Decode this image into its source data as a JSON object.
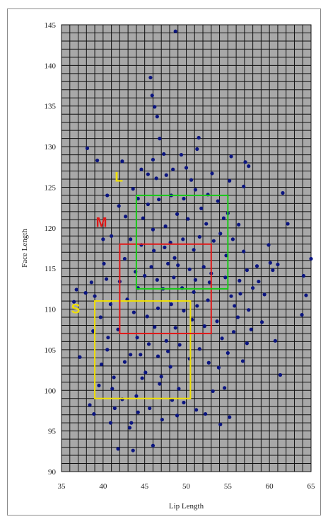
{
  "chart_data": {
    "type": "scatter",
    "title": "",
    "xlabel": "Lip Length",
    "ylabel": "Face Length",
    "xlim": [
      35,
      65
    ],
    "ylim": [
      90,
      145
    ],
    "x_ticks": [
      35,
      40,
      45,
      50,
      55,
      60,
      65
    ],
    "y_ticks": [
      90,
      95,
      100,
      105,
      110,
      115,
      120,
      125,
      130,
      135,
      140,
      145
    ],
    "grid": true,
    "colors": {
      "points": "#0b1580",
      "plot_background": "#a8a8a8",
      "grid_lines": "#111111",
      "box_s": "#f0e000",
      "box_m": "#e01818",
      "box_l": "#18c818"
    },
    "boxes": [
      {
        "label": "S",
        "x": [
          39,
          50.5
        ],
        "y": [
          99,
          111
        ],
        "color": "#f0e000",
        "label_at": [
          36.7,
          109.5
        ],
        "label_color": "#f0e000"
      },
      {
        "label": "M",
        "x": [
          42,
          53
        ],
        "y": [
          107,
          118
        ],
        "color": "#e01818",
        "label_at": [
          39.8,
          120.1
        ],
        "label_color": "#e01818"
      },
      {
        "label": "L",
        "x": [
          44,
          55
        ],
        "y": [
          112.5,
          124
        ],
        "color": "#18c818",
        "label_at": [
          41.9,
          125.7
        ],
        "label_color": "#f0e000"
      }
    ],
    "points": [
      [
        38.1,
        129.8
      ],
      [
        39.3,
        128.3
      ],
      [
        36.8,
        112.4
      ],
      [
        37.2,
        104.1
      ],
      [
        36.5,
        110.9
      ],
      [
        37.9,
        112.0
      ],
      [
        38.6,
        113.3
      ],
      [
        39.0,
        111.6
      ],
      [
        38.4,
        98.2
      ],
      [
        38.9,
        97.1
      ],
      [
        40.9,
        96.0
      ],
      [
        41.8,
        92.8
      ],
      [
        43.6,
        92.6
      ],
      [
        46.0,
        93.2
      ],
      [
        43.4,
        96.0
      ],
      [
        44.2,
        97.3
      ],
      [
        45.6,
        97.8
      ],
      [
        47.1,
        96.4
      ],
      [
        48.9,
        96.9
      ],
      [
        49.7,
        98.5
      ],
      [
        51.2,
        97.6
      ],
      [
        52.3,
        97.1
      ],
      [
        54.1,
        95.8
      ],
      [
        55.2,
        96.7
      ],
      [
        54.6,
        100.3
      ],
      [
        56.8,
        103.6
      ],
      [
        57.3,
        105.8
      ],
      [
        57.8,
        107.5
      ],
      [
        59.1,
        108.4
      ],
      [
        60.7,
        106.1
      ],
      [
        61.3,
        101.9
      ],
      [
        63.9,
        109.3
      ],
      [
        64.4,
        111.7
      ],
      [
        64.1,
        114.1
      ],
      [
        65.0,
        116.2
      ],
      [
        61.0,
        115.5
      ],
      [
        60.1,
        115.7
      ],
      [
        60.4,
        114.8
      ],
      [
        58.5,
        115.3
      ],
      [
        59.4,
        111.8
      ],
      [
        62.2,
        120.5
      ],
      [
        61.6,
        124.3
      ],
      [
        57.5,
        127.6
      ],
      [
        57.1,
        128.1
      ],
      [
        55.4,
        128.8
      ],
      [
        56.9,
        125.1
      ],
      [
        51.5,
        131.1
      ],
      [
        51.3,
        129.7
      ],
      [
        49.4,
        129.0
      ],
      [
        48.4,
        127.2
      ],
      [
        48.7,
        144.2
      ],
      [
        45.7,
        138.5
      ],
      [
        45.9,
        136.3
      ],
      [
        46.2,
        134.9
      ],
      [
        46.5,
        133.7
      ],
      [
        46.8,
        131.0
      ],
      [
        44.6,
        127.2
      ],
      [
        42.3,
        128.2
      ],
      [
        40.5,
        124.0
      ],
      [
        41.0,
        119.0
      ],
      [
        40.0,
        118.6
      ],
      [
        40.1,
        115.6
      ],
      [
        40.4,
        113.7
      ],
      [
        43.3,
        104.4
      ],
      [
        42.6,
        103.5
      ],
      [
        44.5,
        104.4
      ],
      [
        41.3,
        101.6
      ],
      [
        44.7,
        101.5
      ],
      [
        41.8,
        107.5
      ],
      [
        40.6,
        106.5
      ],
      [
        39.8,
        103.2
      ],
      [
        41.1,
        100.2
      ],
      [
        45.1,
        102.2
      ],
      [
        47.8,
        104.8
      ],
      [
        47.0,
        101.7
      ],
      [
        48.1,
        102.9
      ],
      [
        46.8,
        100.8
      ],
      [
        46.2,
        107.8
      ],
      [
        44.1,
        106.5
      ],
      [
        49.1,
        100.2
      ],
      [
        48.7,
        107.7
      ],
      [
        50.7,
        108.7
      ],
      [
        52.2,
        107.9
      ],
      [
        51.6,
        105.1
      ],
      [
        53.7,
        108.5
      ],
      [
        54.3,
        106.4
      ],
      [
        55.7,
        107.2
      ],
      [
        56.2,
        109.0
      ],
      [
        55.4,
        111.6
      ],
      [
        54.7,
        113.9
      ],
      [
        53.0,
        114.4
      ],
      [
        54.8,
        116.6
      ],
      [
        53.3,
        118.4
      ],
      [
        52.1,
        115.2
      ],
      [
        52.8,
        113.3
      ],
      [
        50.9,
        112.1
      ],
      [
        49.5,
        112.6
      ],
      [
        48.5,
        113.9
      ],
      [
        47.2,
        112.5
      ],
      [
        46.5,
        113.6
      ],
      [
        45.0,
        114.1
      ],
      [
        45.8,
        115.2
      ],
      [
        47.8,
        115.6
      ],
      [
        48.6,
        116.3
      ],
      [
        47.4,
        117.6
      ],
      [
        46.1,
        117.2
      ],
      [
        44.6,
        117.9
      ],
      [
        43.3,
        118.6
      ],
      [
        42.6,
        116.2
      ],
      [
        43.9,
        114.6
      ],
      [
        44.2,
        112.6
      ],
      [
        42.9,
        111.2
      ],
      [
        43.7,
        109.6
      ],
      [
        45.3,
        109.1
      ],
      [
        46.6,
        110.1
      ],
      [
        48.2,
        110.6
      ],
      [
        49.7,
        109.8
      ],
      [
        51.3,
        110.4
      ],
      [
        52.6,
        111.1
      ],
      [
        51.1,
        113.6
      ],
      [
        50.4,
        114.9
      ],
      [
        49.0,
        115.4
      ],
      [
        48.1,
        118.2
      ],
      [
        49.6,
        118.6
      ],
      [
        50.9,
        117.3
      ],
      [
        51.6,
        118.9
      ],
      [
        52.4,
        120.5
      ],
      [
        51.8,
        122.4
      ],
      [
        50.2,
        121.1
      ],
      [
        48.9,
        121.7
      ],
      [
        47.5,
        120.2
      ],
      [
        46.0,
        119.8
      ],
      [
        44.8,
        121.2
      ],
      [
        45.4,
        122.9
      ],
      [
        46.7,
        123.5
      ],
      [
        48.2,
        124.0
      ],
      [
        49.7,
        123.6
      ],
      [
        51.1,
        124.7
      ],
      [
        52.6,
        124.1
      ],
      [
        53.8,
        123.3
      ],
      [
        54.5,
        121.2
      ],
      [
        54.1,
        119.3
      ],
      [
        55.6,
        118.6
      ],
      [
        56.3,
        120.4
      ],
      [
        56.9,
        117.1
      ],
      [
        57.3,
        114.8
      ],
      [
        58.0,
        112.6
      ],
      [
        56.4,
        113.5
      ],
      [
        55.8,
        110.4
      ],
      [
        57.5,
        109.9
      ],
      [
        52.7,
        103.4
      ],
      [
        50.4,
        103.9
      ],
      [
        49.2,
        105.6
      ],
      [
        47.6,
        106.1
      ],
      [
        46.6,
        104.2
      ],
      [
        45.5,
        105.7
      ],
      [
        45.4,
        126.6
      ],
      [
        46.4,
        126.1
      ],
      [
        43.6,
        124.8
      ],
      [
        44.2,
        123.6
      ],
      [
        47.6,
        126.5
      ],
      [
        50.0,
        127.4
      ],
      [
        53.1,
        126.7
      ],
      [
        55.2,
        125.8
      ],
      [
        42.7,
        121.4
      ],
      [
        41.9,
        122.7
      ],
      [
        40.9,
        110.6
      ],
      [
        39.7,
        109.0
      ],
      [
        42.0,
        113.4
      ],
      [
        40.5,
        105.0
      ],
      [
        41.4,
        97.8
      ],
      [
        44.0,
        99.3
      ],
      [
        48.3,
        98.8
      ],
      [
        53.2,
        99.9
      ],
      [
        53.9,
        102.8
      ],
      [
        55.0,
        104.6
      ],
      [
        43.2,
        95.4
      ],
      [
        42.3,
        98.9
      ],
      [
        39.5,
        100.6
      ],
      [
        38.8,
        107.3
      ],
      [
        56.5,
        111.9
      ],
      [
        58.7,
        113.4
      ],
      [
        59.9,
        117.9
      ],
      [
        55.0,
        121.8
      ],
      [
        50.6,
        125.9
      ],
      [
        47.3,
        129.1
      ],
      [
        46.0,
        128.4
      ]
    ]
  }
}
